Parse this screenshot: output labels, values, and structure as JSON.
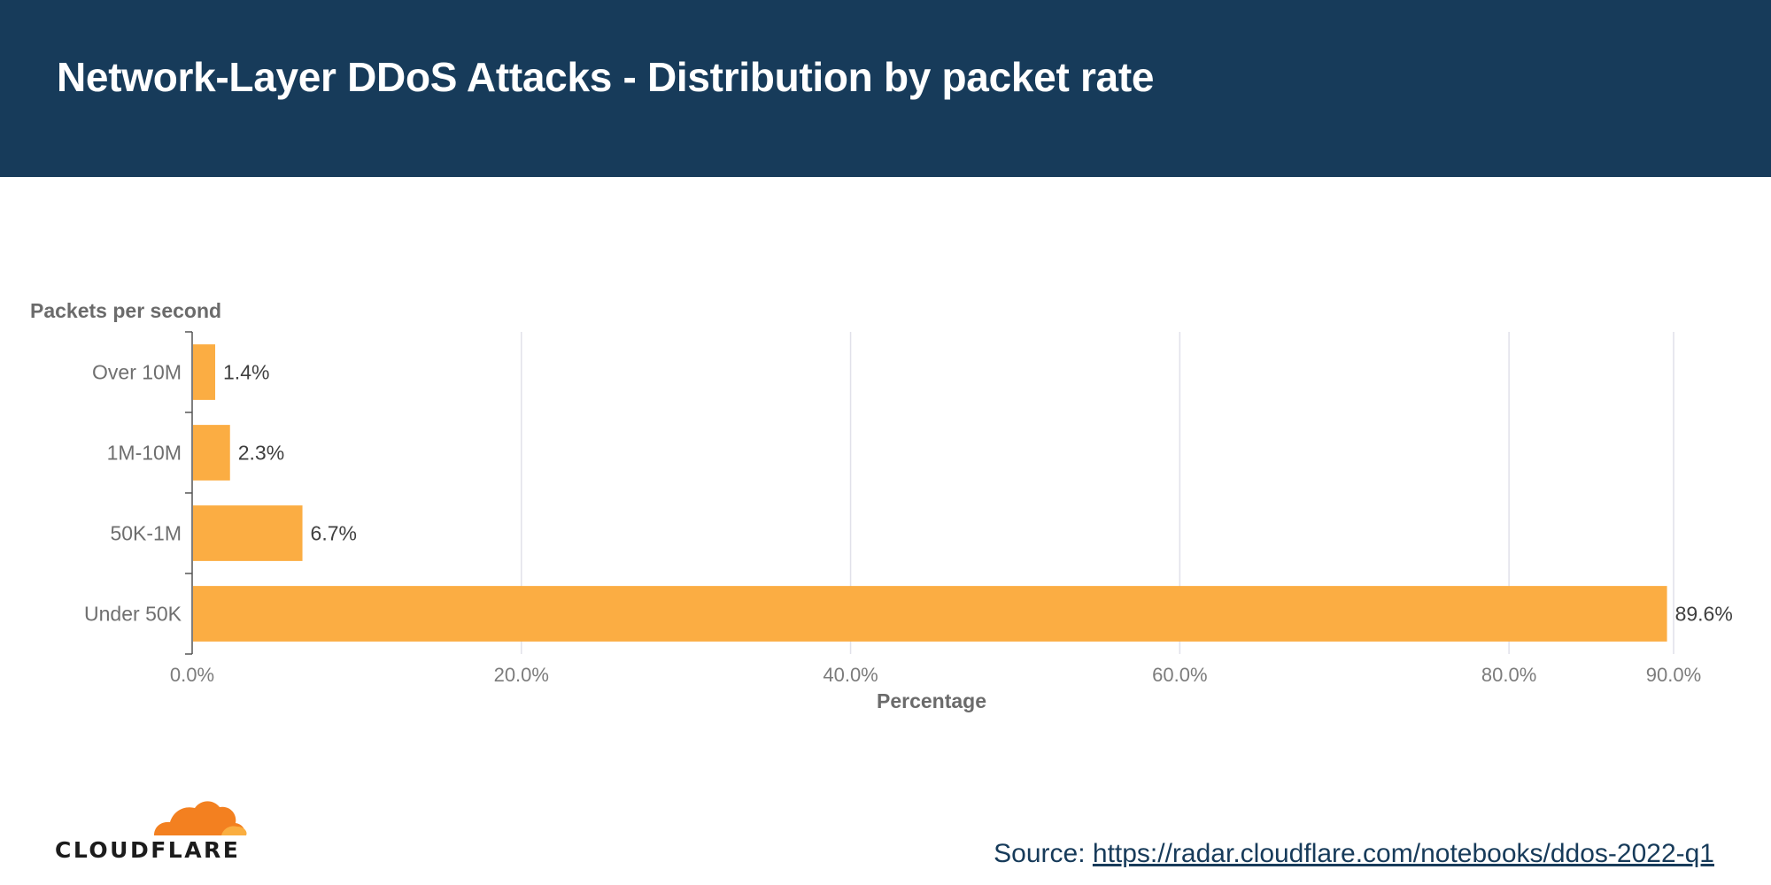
{
  "header": {
    "title": "Network-Layer DDoS Attacks - Distribution by packet rate"
  },
  "chart_data": {
    "type": "bar",
    "orientation": "horizontal",
    "ytitle": "Packets per second",
    "xlabel": "Percentage",
    "categories": [
      "Over 10M",
      "1M-10M",
      "50K-1M",
      "Under 50K"
    ],
    "values": [
      1.4,
      2.3,
      6.7,
      89.6
    ],
    "value_labels": [
      "1.4%",
      "2.3%",
      "6.7%",
      "89.6%"
    ],
    "xlim": [
      0,
      90
    ],
    "xticks": [
      0,
      20,
      40,
      60,
      80,
      90
    ],
    "xtick_labels": [
      "0.0%",
      "20.0%",
      "40.0%",
      "60.0%",
      "80.0%",
      "90.0%"
    ],
    "grid": true,
    "bar_color": "#fbad43"
  },
  "logo": {
    "text": "CLOUDFLARE",
    "color": "#f38020"
  },
  "footer": {
    "source_prefix": "Source: ",
    "source_link": "https://radar.cloudflare.com/notebooks/ddos-2022-q1"
  }
}
